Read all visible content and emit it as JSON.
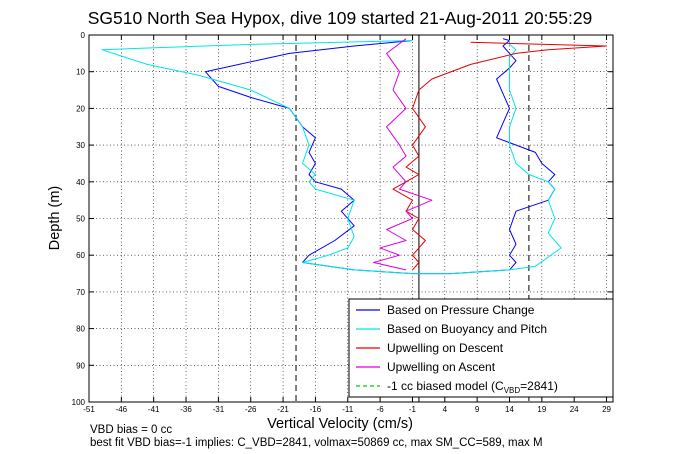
{
  "chart_data": {
    "type": "line",
    "title": "SG510 North Sea Hypox, dive 109 started 21-Aug-2011 20:55:29",
    "xlabel": "Vertical Velocity (cm/s)",
    "ylabel": "Depth (m)",
    "xlim": [
      -51,
      30
    ],
    "ylim": [
      0,
      100
    ],
    "y_reversed": true,
    "x_ticks": [
      -51,
      -46,
      -41,
      -36,
      -31,
      -26,
      -21,
      -16,
      -11,
      -6,
      -1,
      4,
      9,
      14,
      19,
      24,
      29
    ],
    "y_ticks": [
      0,
      10,
      20,
      30,
      40,
      50,
      60,
      70,
      80,
      90,
      100
    ],
    "grid": true,
    "legend_position": "bottom-right",
    "series": [
      {
        "name": "Based on Pressure Change",
        "color": "#0000ff",
        "style": "solid",
        "x": [
          -1,
          -10,
          -20,
          -33,
          -31,
          -26,
          -20,
          -18,
          -16,
          -17,
          -16,
          -17,
          -16,
          -12,
          -10,
          -12,
          -10,
          -13,
          -17,
          -18,
          -10,
          -1,
          5,
          14,
          15,
          14,
          15,
          14,
          15,
          20,
          21,
          20,
          21,
          19,
          18,
          12,
          13,
          14,
          13,
          12,
          14,
          15,
          14,
          13,
          14,
          13
        ],
        "y": [
          1.5,
          3,
          5,
          10,
          14,
          17,
          20,
          25,
          28,
          32,
          35,
          38,
          40,
          42,
          45,
          48,
          52,
          56,
          60,
          62,
          64,
          65,
          65,
          64,
          62,
          60,
          57,
          53,
          48,
          45,
          42,
          40,
          38,
          35,
          32,
          28,
          24,
          20,
          16,
          12,
          9,
          7,
          5,
          3,
          1.5,
          1
        ]
      },
      {
        "name": "Based on Buoyancy and Pitch",
        "color": "#00e6e6",
        "style": "solid",
        "x": [
          -1,
          -25,
          -49,
          -42,
          -34,
          -26,
          -20,
          -18,
          -17,
          -18,
          -16,
          -17,
          -16,
          -10,
          -11,
          -10,
          -11,
          -14,
          -16,
          -18,
          -10,
          -1,
          5,
          14,
          18,
          22,
          20,
          21,
          20,
          21,
          20,
          17,
          15,
          14,
          14,
          15,
          14,
          14,
          14,
          14,
          15,
          14,
          14
        ],
        "y": [
          1.5,
          2.5,
          4,
          8,
          11,
          15,
          20,
          25,
          30,
          35,
          38,
          40,
          42,
          45,
          50,
          55,
          58,
          60,
          61,
          62,
          64,
          65,
          65,
          64,
          63,
          58,
          54,
          50,
          45,
          42,
          40,
          38,
          35,
          30,
          25,
          20,
          15,
          12,
          9,
          6,
          4,
          2.5,
          1
        ]
      },
      {
        "name": "Upwelling on Descent",
        "color": "#e60000",
        "style": "solid",
        "x": [
          8,
          29,
          20,
          15,
          8,
          2,
          0,
          -1,
          1,
          -1,
          0,
          -2,
          0,
          -2,
          -4,
          -1,
          -2,
          0,
          -1,
          1,
          0,
          -1,
          0,
          -1
        ],
        "y": [
          2,
          3,
          4,
          5,
          8,
          12,
          15,
          20,
          25,
          30,
          33,
          36,
          38,
          40,
          42,
          45,
          48,
          50,
          53,
          56,
          58,
          60,
          62,
          64
        ]
      },
      {
        "name": "Upwelling on Ascent",
        "color": "#dd00dd",
        "style": "solid",
        "x": [
          -2,
          -5,
          -3,
          -4,
          -2,
          -5,
          -3,
          -2,
          -4,
          -2,
          -3,
          2,
          -2,
          -1,
          -5,
          -2,
          -6,
          -3,
          -7,
          -2
        ],
        "y": [
          1,
          5,
          10,
          15,
          20,
          25,
          30,
          33,
          36,
          40,
          42,
          45,
          48,
          50,
          53,
          56,
          58,
          60,
          62,
          64
        ]
      },
      {
        "name": "-1 cc biased model (C",
        "name_sub": "VBD",
        "name_suffix": "=2841)",
        "color": "#00cc00",
        "style": "dashed",
        "x": [],
        "y": []
      }
    ],
    "reference_lines": [
      {
        "x": -19,
        "color": "#000000",
        "style": "dashed"
      },
      {
        "x": 0,
        "color": "#000000",
        "style": "solid"
      },
      {
        "x": 17,
        "color": "#000000",
        "style": "dashed"
      }
    ]
  },
  "footer": {
    "line1": "VBD bias = 0 cc",
    "line2": "best fit VBD bias=-1 implies: C_VBD=2841, volmax=50869 cc, max SM_CC=589, max M"
  }
}
